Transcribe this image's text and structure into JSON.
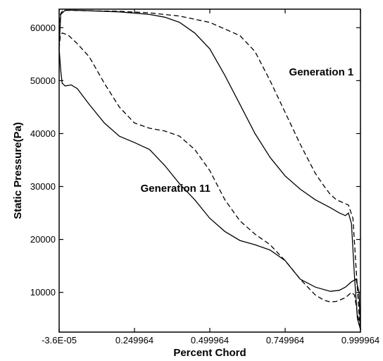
{
  "chart_data": {
    "type": "line",
    "xlabel": "Percent Chord",
    "ylabel": "Static Pressure(Pa)",
    "xlim": [
      -3.6e-05,
      0.999964
    ],
    "ylim": [
      2500,
      63500
    ],
    "x_ticks": [
      -3.6e-05,
      0.249964,
      0.499964,
      0.749964,
      0.999964
    ],
    "x_tick_labels": [
      "-3.6E-05",
      "0.249964",
      "0.499964",
      "0.749964",
      "0.999964"
    ],
    "y_ticks": [
      10000,
      20000,
      30000,
      40000,
      50000,
      60000
    ],
    "y_tick_labels": [
      "10000",
      "20000",
      "30000",
      "40000",
      "50000",
      "60000"
    ],
    "grid": false,
    "series": [
      {
        "name": "Generation 1",
        "style": "dashed",
        "color": "#000000",
        "upper": {
          "x": [
            0.0,
            0.004,
            0.01,
            0.03,
            0.1,
            0.2,
            0.3,
            0.4,
            0.5,
            0.6,
            0.65,
            0.7,
            0.75,
            0.8,
            0.85,
            0.88,
            0.9,
            0.92,
            0.94,
            0.96,
            0.975,
            0.985,
            0.995,
            1.0
          ],
          "y": [
            58000,
            62500,
            63100,
            63300,
            63200,
            63100,
            62800,
            62200,
            61000,
            58500,
            55500,
            50000,
            44000,
            38000,
            32500,
            30000,
            28500,
            27500,
            27000,
            26500,
            24000,
            15000,
            6000,
            3000
          ]
        },
        "lower": {
          "x": [
            0.0,
            0.004,
            0.01,
            0.03,
            0.06,
            0.1,
            0.15,
            0.2,
            0.25,
            0.3,
            0.35,
            0.4,
            0.45,
            0.5,
            0.55,
            0.6,
            0.65,
            0.7,
            0.75,
            0.8,
            0.85,
            0.88,
            0.9,
            0.92,
            0.95,
            0.97,
            0.98,
            0.99,
            1.0
          ],
          "y": [
            56000,
            58500,
            59000,
            58600,
            57000,
            54500,
            49500,
            45000,
            42000,
            41000,
            40500,
            39500,
            37000,
            33000,
            27500,
            23500,
            21000,
            19000,
            16000,
            12500,
            9500,
            8500,
            8200,
            8300,
            9000,
            10000,
            9500,
            6000,
            3000
          ]
        }
      },
      {
        "name": "Generation 11",
        "style": "solid",
        "color": "#000000",
        "upper": {
          "x": [
            0.0,
            0.005,
            0.02,
            0.05,
            0.1,
            0.2,
            0.3,
            0.35,
            0.4,
            0.45,
            0.5,
            0.55,
            0.6,
            0.65,
            0.7,
            0.75,
            0.8,
            0.85,
            0.9,
            0.93,
            0.95,
            0.96,
            0.97,
            0.98,
            0.99,
            1.0
          ],
          "y": [
            56000,
            62500,
            63300,
            63300,
            63200,
            63000,
            62500,
            62000,
            61000,
            59000,
            56000,
            51000,
            45500,
            40000,
            35500,
            32000,
            29500,
            27500,
            26000,
            25000,
            24500,
            25000,
            23000,
            13000,
            5000,
            3000
          ]
        },
        "lower": {
          "x": [
            0.0,
            0.005,
            0.01,
            0.02,
            0.04,
            0.06,
            0.1,
            0.15,
            0.2,
            0.25,
            0.3,
            0.35,
            0.4,
            0.45,
            0.5,
            0.55,
            0.6,
            0.65,
            0.7,
            0.75,
            0.8,
            0.85,
            0.9,
            0.93,
            0.95,
            0.97,
            0.985,
            0.995,
            1.0
          ],
          "y": [
            56000,
            52000,
            49500,
            49000,
            49200,
            48500,
            45500,
            42000,
            39500,
            38300,
            37000,
            34000,
            30500,
            27500,
            24000,
            21500,
            19800,
            19000,
            18000,
            16000,
            12500,
            11000,
            10200,
            10400,
            11000,
            12000,
            12500,
            10000,
            3000
          ]
        }
      }
    ],
    "annotations": [
      {
        "text": "Generation 1",
        "at_x": 0.87,
        "at_y": 51000
      },
      {
        "text": "Generation 11",
        "at_x": 0.27,
        "at_y": 29000
      }
    ]
  }
}
